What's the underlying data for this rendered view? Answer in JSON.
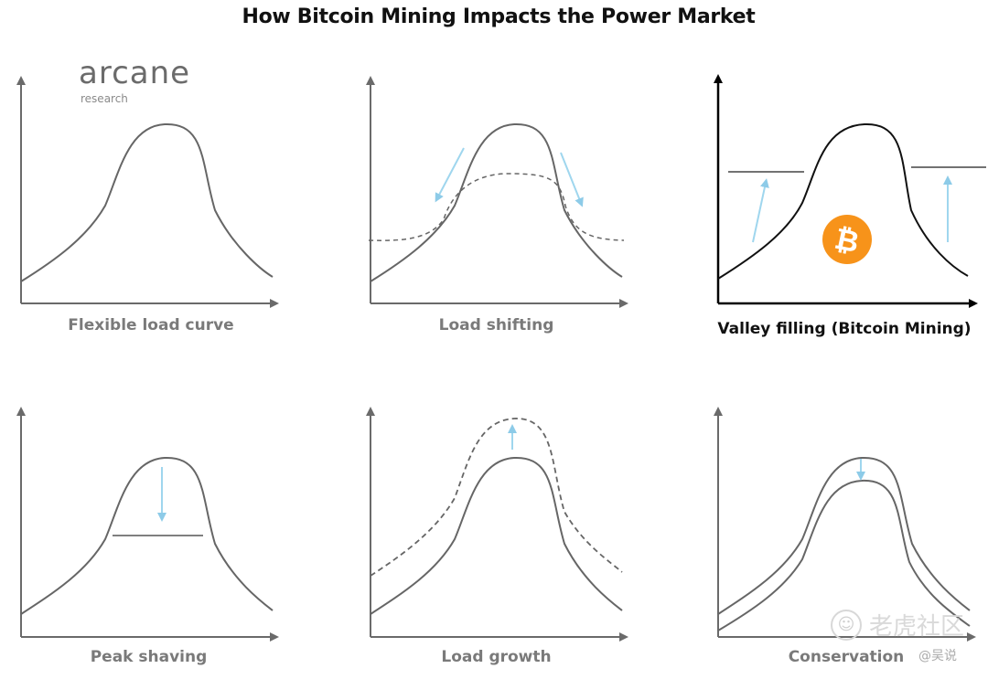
{
  "title": "How Bitcoin Mining Impacts the Power Market",
  "logo": {
    "name": "arcane",
    "tagline": "research"
  },
  "panels": [
    {
      "caption": "Flexible load curve",
      "highlighted": false
    },
    {
      "caption": "Load shifting",
      "highlighted": false
    },
    {
      "caption": "Valley filling (Bitcoin Mining)",
      "highlighted": true,
      "badge_icon": "bitcoin-icon",
      "badge_symbol": "₿"
    },
    {
      "caption": "Peak shaving",
      "highlighted": false
    },
    {
      "caption": "Load growth",
      "highlighted": false
    },
    {
      "caption": "Conservation",
      "highlighted": false
    }
  ],
  "colors": {
    "curve": "#666666",
    "axis": "#6a6a6a",
    "axis_highlight": "#000000",
    "arrow": "#9fd6ee",
    "bitcoin": "#f7931a"
  },
  "watermark": {
    "icon": "tiger-icon",
    "text": "老虎社区",
    "handle": "@吴说"
  }
}
